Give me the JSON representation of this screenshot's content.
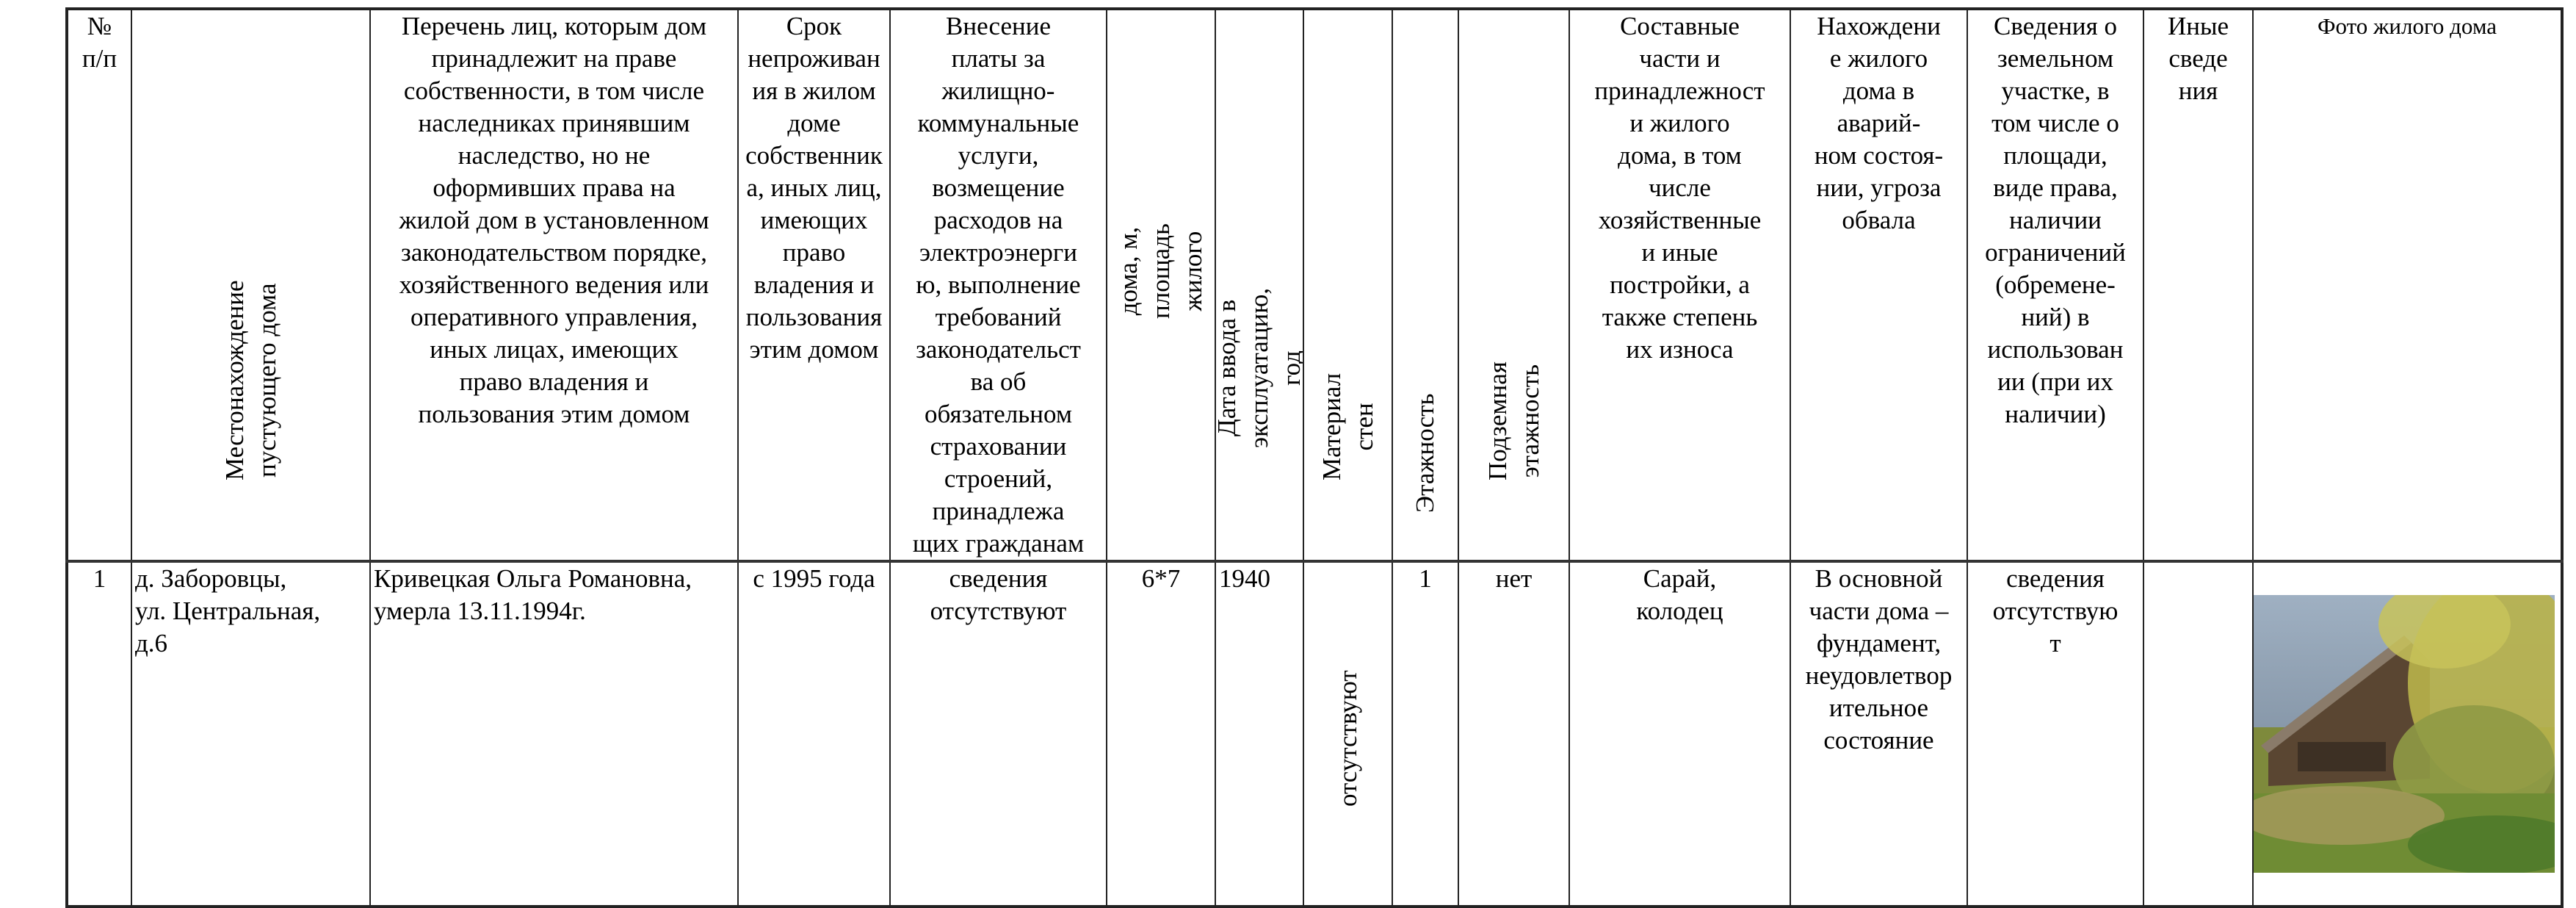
{
  "table": {
    "headers": {
      "num": "№\nп/п",
      "location": "Местонахождение пустующего дома",
      "owners": "Перечень лиц, которым дом\nпринадлежит на праве\nсобственности, в том числе\nнаследниках принявшим\nнаследство, но не\nоформивших права на\nжилой дом в установленном\nзаконодательством порядке,\nхозяйственного ведения или\nоперативного управления,\nиных лицах, имеющих\nправо владения и\nпользования этим домом",
      "absence_period": "Срок\nнепроживан\nия в жилом\nдоме\nсобственник\nа, иных лиц,\nимеющих\nправо\nвладения и\nпользования\nэтим домом",
      "payments": "Внесение\nплаты за\nжилищно-\nкоммунальные\nуслуги,\nвозмещение\nрасходов на\nэлектроэнерги\nю, выполнение\nтребований\nзаконодательст\nва об\nобязательном\nстраховании\nстроений,\nпринадлежа\nщих гражданам",
      "size": "Размер жилого дома, м, площадь жилого\nдома, кв.м",
      "commission_date": "Дата ввода в эксплуатацию,\nгод",
      "wall_material": "Материал стен",
      "floors": "Этажность",
      "underground_floors": "Подземная этажность",
      "components": "Составные\nчасти и\nпринадлежност\nи  жилого\nдома, в том\nчисле\nхозяйственные\nи иные\nпостройки, а\nтакже степень\nих износа",
      "emergency": "Нахождени\nе жилого\nдома в\nаварий-\nном состоя-\nнии, угроза\nобвала",
      "land": "Сведения о\nземельном\nучастке, в\nтом числе о\nплощади,\nвиде  права,\nналичии\nограничений\n(обремене-\nний) в\nиспользован\nии (при их\nналичии)",
      "other": "Иные\nсведе\nния",
      "photo": "Фото жилого дома"
    },
    "rows": [
      {
        "num": "1",
        "location": "д. Заборовцы,\nул. Центральная,\nд.6",
        "owners": "Кривецкая Ольга Романовна,\nумерла 13.11.1994г.",
        "absence_period": "с 1995 года",
        "payments": "сведения\nотсутствуют",
        "size": "6*7",
        "commission_date": "1940",
        "wall_material": "отсутствуют",
        "floors": "1",
        "underground_floors": "нет",
        "components": "Сарай,\nколодец",
        "emergency": "В основной\nчасти дома –\nфундамент,\nнеудовлетвор\nительное\nсостояние",
        "land": "сведения\nотсутствую\nт",
        "other": "",
        "photo_icon": "house-photo"
      }
    ]
  }
}
